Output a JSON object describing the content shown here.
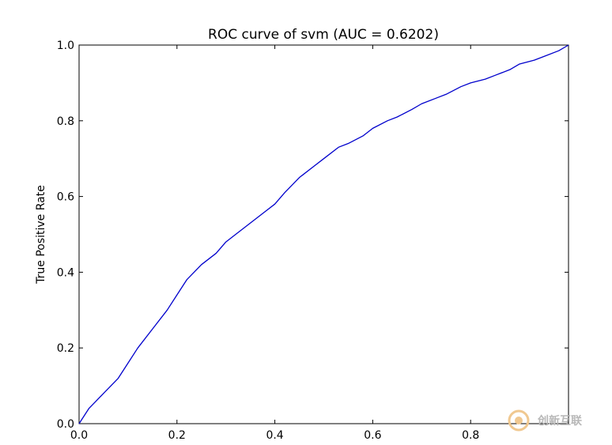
{
  "chart_data": {
    "type": "line",
    "title": "ROC curve of svm (AUC = 0.6202)",
    "xlabel": "",
    "ylabel": "True Positive Rate",
    "xlim": [
      0.0,
      1.0
    ],
    "ylim": [
      0.0,
      1.0
    ],
    "x_ticks": [
      "0.0",
      "0.2",
      "0.4",
      "0.6",
      "0.8"
    ],
    "y_ticks": [
      "0.0",
      "0.2",
      "0.4",
      "0.6",
      "0.8",
      "1.0"
    ],
    "grid": false,
    "legend": "none",
    "series": [
      {
        "color": "#0000cc",
        "x": [
          0.0,
          0.02,
          0.05,
          0.08,
          0.1,
          0.12,
          0.15,
          0.18,
          0.2,
          0.22,
          0.25,
          0.28,
          0.3,
          0.32,
          0.35,
          0.38,
          0.4,
          0.42,
          0.45,
          0.48,
          0.5,
          0.53,
          0.55,
          0.58,
          0.6,
          0.63,
          0.65,
          0.68,
          0.7,
          0.73,
          0.75,
          0.78,
          0.8,
          0.83,
          0.85,
          0.88,
          0.9,
          0.93,
          0.95,
          0.98,
          1.0
        ],
        "y": [
          0.0,
          0.04,
          0.08,
          0.12,
          0.16,
          0.2,
          0.25,
          0.3,
          0.34,
          0.38,
          0.42,
          0.45,
          0.48,
          0.5,
          0.53,
          0.56,
          0.58,
          0.61,
          0.65,
          0.68,
          0.7,
          0.73,
          0.74,
          0.76,
          0.78,
          0.8,
          0.81,
          0.83,
          0.845,
          0.86,
          0.87,
          0.89,
          0.9,
          0.91,
          0.92,
          0.935,
          0.95,
          0.96,
          0.97,
          0.985,
          1.0
        ]
      }
    ]
  },
  "watermark": {
    "text": "创新互联",
    "icon": "brand-logo-icon"
  }
}
